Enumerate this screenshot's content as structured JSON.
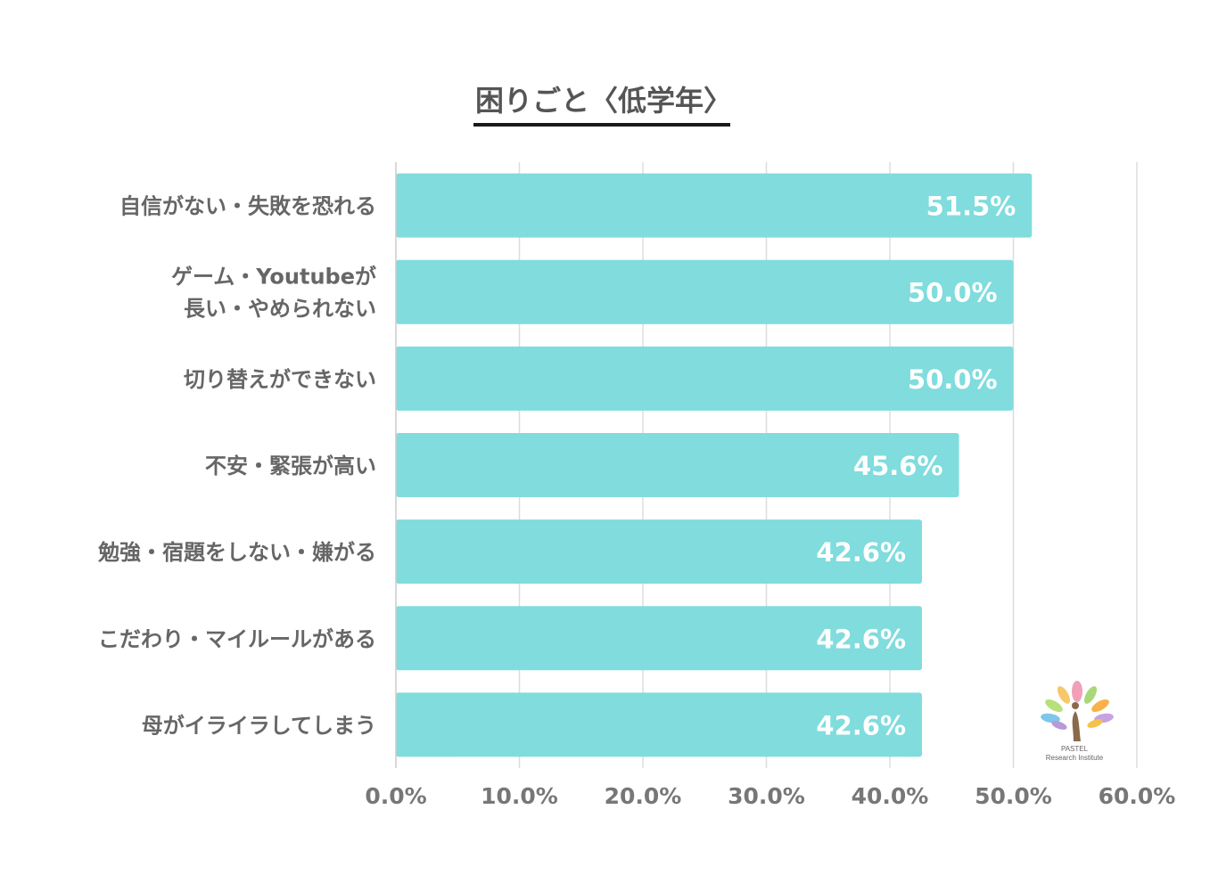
{
  "chart_data": {
    "type": "bar",
    "orientation": "horizontal",
    "title": "困りごと〈低学年〉",
    "categories": [
      [
        "自信がない・失敗を恐れる"
      ],
      [
        "ゲーム・Youtubeが",
        "長い・やめられない"
      ],
      [
        "切り替えができない"
      ],
      [
        "不安・緊張が高い"
      ],
      [
        "勉強・宿題をしない・嫌がる"
      ],
      [
        "こだわり・マイルールがある"
      ],
      [
        "母がイライラしてしまう"
      ]
    ],
    "values": [
      51.5,
      50.0,
      50.0,
      45.6,
      42.6,
      42.6,
      42.6
    ],
    "value_labels": [
      "51.5%",
      "50.0%",
      "50.0%",
      "45.6%",
      "42.6%",
      "42.6%",
      "42.6%"
    ],
    "xlim": [
      0,
      60
    ],
    "xticks": [
      0,
      10,
      20,
      30,
      40,
      50,
      60
    ],
    "xtick_labels": [
      "0.0%",
      "10.0%",
      "20.0%",
      "30.0%",
      "40.0%",
      "50.0%",
      "60.0%"
    ],
    "grid": true,
    "bar_color": "#80dcdd",
    "xlabel": "",
    "ylabel": ""
  },
  "logo": {
    "line1": "PASTEL",
    "line2": "Research Institute"
  }
}
